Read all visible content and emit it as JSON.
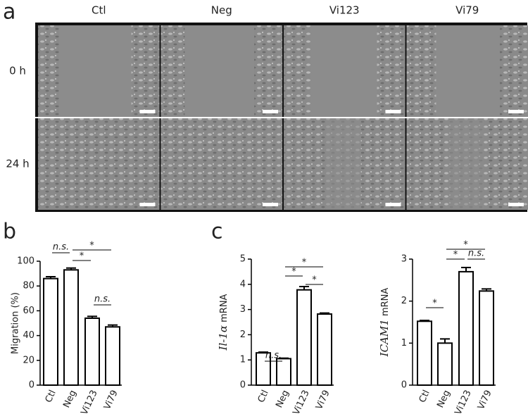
{
  "figure": {
    "panels": [
      "a",
      "b",
      "c"
    ],
    "columns": [
      "Ctl",
      "Neg",
      "Vi123",
      "Vi79"
    ],
    "rows": [
      "0 h",
      "24 h"
    ]
  },
  "chart_data": [
    {
      "type": "bar",
      "ylabel": "Migration (%)",
      "categories": [
        "Ctl",
        "Neg",
        "Vi123",
        "Vi79"
      ],
      "values": [
        86,
        93,
        54,
        47
      ],
      "errors": [
        1.5,
        1.5,
        1.5,
        1.5
      ],
      "color": "#ffffff",
      "ylim": [
        0,
        100
      ],
      "yticks": [
        0,
        20,
        40,
        60,
        80,
        100
      ],
      "annotations": [
        "n.s.",
        "*",
        "*",
        "n.s."
      ]
    },
    {
      "type": "bar",
      "ylabel": {
        "gene": "Il-1α",
        "unit": "mRNA"
      },
      "categories": [
        "Ctl",
        "Neg",
        "Vi123",
        "Vi79"
      ],
      "values": [
        1.28,
        1.05,
        3.78,
        2.82
      ],
      "errors": [
        0.03,
        0.02,
        0.13,
        0.04
      ],
      "color": "#ffffff",
      "ylim": [
        0,
        5
      ],
      "yticks": [
        0,
        1,
        2,
        3,
        4,
        5
      ],
      "annotations": [
        "n.s.",
        "*",
        "*",
        "*"
      ]
    },
    {
      "type": "bar",
      "ylabel": {
        "gene": "ICAM1",
        "unit": "mRNA"
      },
      "categories": [
        "Ctl",
        "Neg",
        "Vi123",
        "Vi79"
      ],
      "values": [
        1.52,
        1.0,
        2.7,
        2.24
      ],
      "errors": [
        0.02,
        0.1,
        0.1,
        0.05
      ],
      "color": "#ffffff",
      "ylim": [
        0,
        3
      ],
      "yticks": [
        0,
        1,
        2,
        3
      ],
      "annotations": [
        "*",
        "*",
        "*",
        "n.s."
      ]
    }
  ]
}
